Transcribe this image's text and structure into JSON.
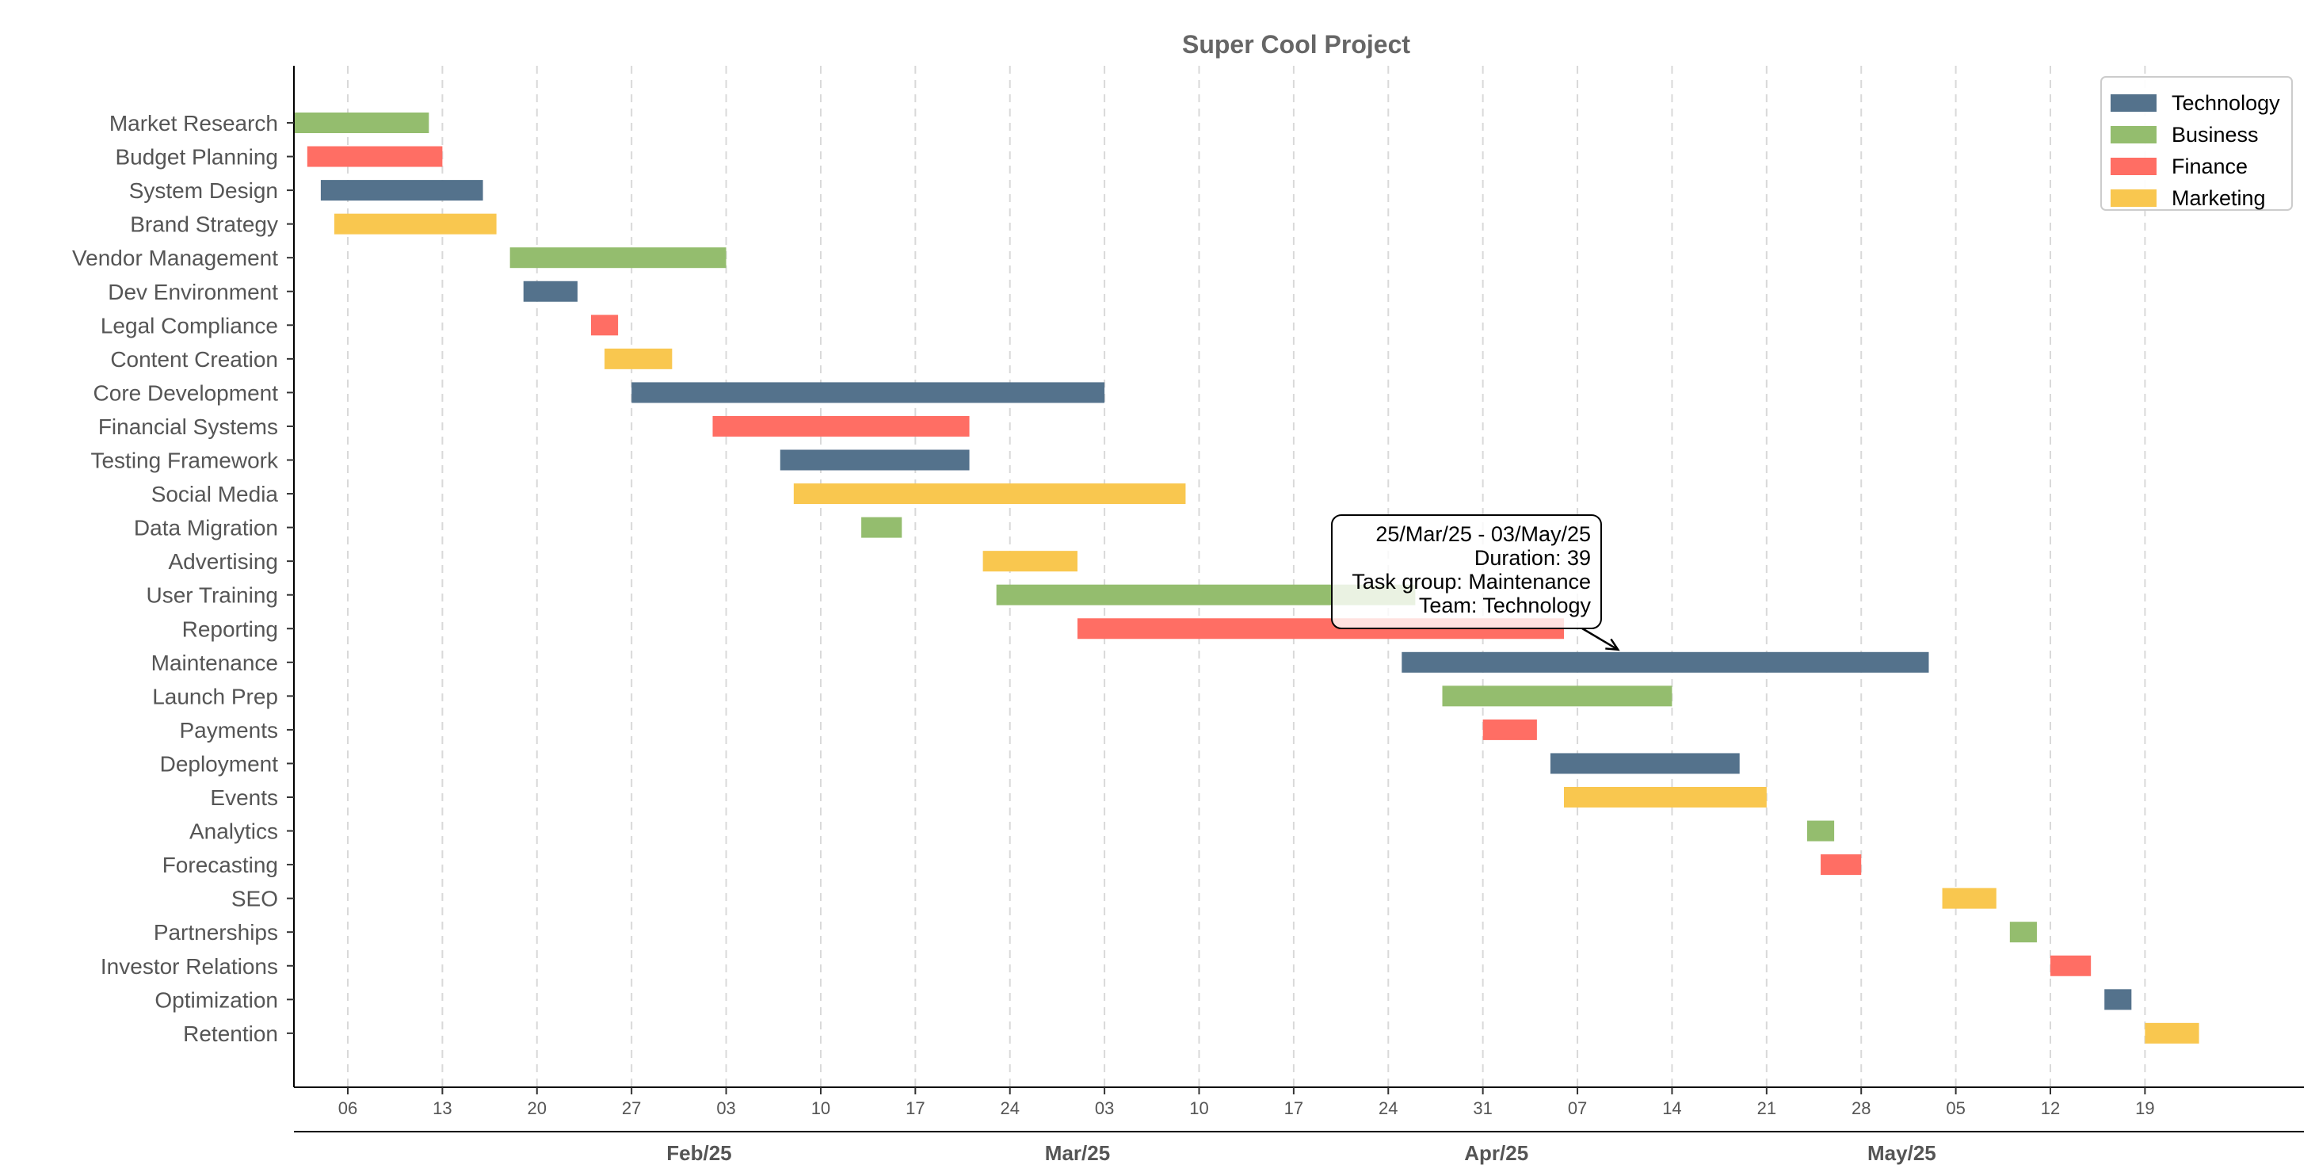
{
  "chart_data": {
    "type": "gantt",
    "title": "Super Cool Project",
    "x_range": [
      "2025-01-01",
      "2025-05-31"
    ],
    "week_ticks": [
      "2025-01-06",
      "2025-01-13",
      "2025-01-20",
      "2025-01-27",
      "2025-02-03",
      "2025-02-10",
      "2025-02-17",
      "2025-02-24",
      "2025-03-03",
      "2025-03-10",
      "2025-03-17",
      "2025-03-24",
      "2025-03-31",
      "2025-04-07",
      "2025-04-14",
      "2025-04-21",
      "2025-04-28",
      "2025-05-05",
      "2025-05-12",
      "2025-05-19"
    ],
    "month_ticks": [
      {
        "label": "Feb/25",
        "date": "2025-02-01"
      },
      {
        "label": "Mar/25",
        "date": "2025-03-01"
      },
      {
        "label": "Apr/25",
        "date": "2025-04-01"
      },
      {
        "label": "May/25",
        "date": "2025-05-01"
      }
    ],
    "teams": [
      {
        "name": "Technology",
        "color": "#54728C"
      },
      {
        "name": "Business",
        "color": "#94BD6E"
      },
      {
        "name": "Finance",
        "color": "#FF6E64"
      },
      {
        "name": "Marketing",
        "color": "#F9C74F"
      }
    ],
    "tasks": [
      {
        "name": "Market Research",
        "team": "Business",
        "start": "2025-01-02",
        "end": "2025-01-12"
      },
      {
        "name": "Budget Planning",
        "team": "Finance",
        "start": "2025-01-03",
        "end": "2025-01-13"
      },
      {
        "name": "System Design",
        "team": "Technology",
        "start": "2025-01-04",
        "end": "2025-01-16"
      },
      {
        "name": "Brand Strategy",
        "team": "Marketing",
        "start": "2025-01-05",
        "end": "2025-01-17"
      },
      {
        "name": "Vendor Management",
        "team": "Business",
        "start": "2025-01-18",
        "end": "2025-02-03"
      },
      {
        "name": "Dev Environment",
        "team": "Technology",
        "start": "2025-01-19",
        "end": "2025-01-23"
      },
      {
        "name": "Legal Compliance",
        "team": "Finance",
        "start": "2025-01-24",
        "end": "2025-01-26"
      },
      {
        "name": "Content Creation",
        "team": "Marketing",
        "start": "2025-01-25",
        "end": "2025-01-30"
      },
      {
        "name": "Core Development",
        "team": "Technology",
        "start": "2025-01-27",
        "end": "2025-03-03"
      },
      {
        "name": "Financial Systems",
        "team": "Finance",
        "start": "2025-02-02",
        "end": "2025-02-21"
      },
      {
        "name": "Testing Framework",
        "team": "Technology",
        "start": "2025-02-07",
        "end": "2025-02-21"
      },
      {
        "name": "Social Media",
        "team": "Marketing",
        "start": "2025-02-08",
        "end": "2025-03-09"
      },
      {
        "name": "Data Migration",
        "team": "Business",
        "start": "2025-02-13",
        "end": "2025-02-16"
      },
      {
        "name": "Advertising",
        "team": "Marketing",
        "start": "2025-02-22",
        "end": "2025-03-01"
      },
      {
        "name": "User Training",
        "team": "Business",
        "start": "2025-02-23",
        "end": "2025-03-26"
      },
      {
        "name": "Reporting",
        "team": "Finance",
        "start": "2025-03-01",
        "end": "2025-04-06"
      },
      {
        "name": "Maintenance",
        "team": "Technology",
        "start": "2025-03-25",
        "end": "2025-05-03"
      },
      {
        "name": "Launch Prep",
        "team": "Business",
        "start": "2025-03-28",
        "end": "2025-04-14"
      },
      {
        "name": "Payments",
        "team": "Finance",
        "start": "2025-03-31",
        "end": "2025-04-04"
      },
      {
        "name": "Deployment",
        "team": "Technology",
        "start": "2025-04-05",
        "end": "2025-04-19"
      },
      {
        "name": "Events",
        "team": "Marketing",
        "start": "2025-04-06",
        "end": "2025-04-21"
      },
      {
        "name": "Analytics",
        "team": "Business",
        "start": "2025-04-24",
        "end": "2025-04-26"
      },
      {
        "name": "Forecasting",
        "team": "Finance",
        "start": "2025-04-25",
        "end": "2025-04-28"
      },
      {
        "name": "SEO",
        "team": "Marketing",
        "start": "2025-05-04",
        "end": "2025-05-08"
      },
      {
        "name": "Partnerships",
        "team": "Business",
        "start": "2025-05-09",
        "end": "2025-05-11"
      },
      {
        "name": "Investor Relations",
        "team": "Finance",
        "start": "2025-05-12",
        "end": "2025-05-15"
      },
      {
        "name": "Optimization",
        "team": "Technology",
        "start": "2025-05-16",
        "end": "2025-05-18"
      },
      {
        "name": "Retention",
        "team": "Marketing",
        "start": "2025-05-19",
        "end": "2025-05-23"
      }
    ],
    "tooltip": {
      "task": "Maintenance",
      "lines": [
        "25/Mar/25 - 03/May/25",
        "Duration: 39",
        "Task group: Maintenance",
        "Team: Technology"
      ],
      "arrow_date": "2025-04-10"
    },
    "grid": "vertical dashed",
    "legend_position": "top-right"
  }
}
